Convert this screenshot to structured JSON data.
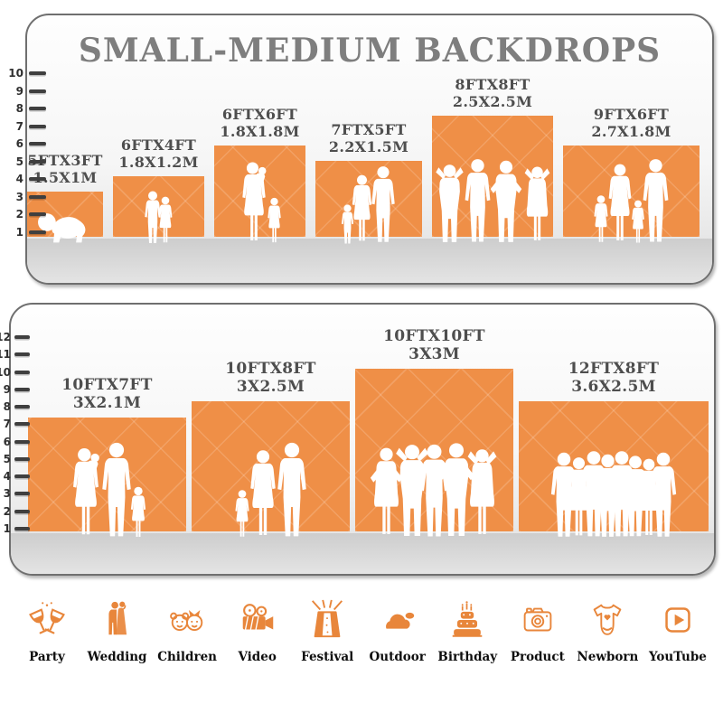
{
  "title": "SMALL-MEDIUM BACKDROPS",
  "colors": {
    "backdrop_orange": "#EF8F47",
    "accent_orange": "#E8863B",
    "title_gray": "#7E7E7E",
    "label_gray": "#4E4E4E",
    "silhouette_white": "#FFFFFF"
  },
  "panels": [
    {
      "name": "small-medium-top",
      "ruler": [
        1,
        2,
        3,
        4,
        5,
        6,
        7,
        8,
        9,
        10
      ],
      "backdrops": [
        {
          "size_ft": "5FTX3FT",
          "size_m": "1.5X1M",
          "w_ft": 5,
          "h_ft": 3,
          "figures": [
            {
              "type": "baby-crawl",
              "scale": 0.45
            }
          ]
        },
        {
          "size_ft": "6FTX4FT",
          "size_m": "1.8X1.2M",
          "w_ft": 6,
          "h_ft": 4,
          "figures": [
            {
              "type": "boy",
              "scale": 0.62
            },
            {
              "type": "girl",
              "scale": 0.56
            }
          ]
        },
        {
          "size_ft": "6FTX6FT",
          "size_m": "1.8X1.8M",
          "w_ft": 6,
          "h_ft": 6,
          "figures": [
            {
              "type": "woman-baby",
              "scale": 0.97
            },
            {
              "type": "girl",
              "scale": 0.55
            }
          ]
        },
        {
          "size_ft": "7FTX5FT",
          "size_m": "2.2X1.5M",
          "w_ft": 7,
          "h_ft": 5,
          "figures": [
            {
              "type": "toddler",
              "scale": 0.47
            },
            {
              "type": "woman",
              "scale": 0.82
            },
            {
              "type": "man",
              "scale": 0.92
            }
          ]
        },
        {
          "size_ft": "8FTX8FT",
          "size_m": "2.5X2.5M",
          "w_ft": 8,
          "h_ft": 8,
          "figures": [
            {
              "type": "man-up",
              "scale": 0.95
            },
            {
              "type": "man",
              "scale": 1.0
            },
            {
              "type": "man-hips",
              "scale": 0.98
            },
            {
              "type": "woman-up",
              "scale": 0.93
            }
          ]
        },
        {
          "size_ft": "9FTX6FT",
          "size_m": "2.7X1.8M",
          "w_ft": 9,
          "h_ft": 6,
          "figures": [
            {
              "type": "girl",
              "scale": 0.58
            },
            {
              "type": "woman",
              "scale": 0.95
            },
            {
              "type": "girl",
              "scale": 0.52
            },
            {
              "type": "man",
              "scale": 1.0
            }
          ]
        }
      ]
    },
    {
      "name": "small-medium-bottom",
      "ruler": [
        1,
        2,
        3,
        4,
        5,
        6,
        7,
        8,
        9,
        10,
        11,
        12
      ],
      "backdrops": [
        {
          "size_ft": "10FTX7FT",
          "size_m": "3X2.1M",
          "w_ft": 10,
          "h_ft": 7,
          "figures": [
            {
              "type": "woman-baby",
              "scale": 0.95
            },
            {
              "type": "man",
              "scale": 1.0
            },
            {
              "type": "girl",
              "scale": 0.55
            }
          ]
        },
        {
          "size_ft": "10FTX8FT",
          "size_m": "3X2.5M",
          "w_ft": 10,
          "h_ft": 8,
          "figures": [
            {
              "type": "girl",
              "scale": 0.52
            },
            {
              "type": "woman",
              "scale": 0.93
            },
            {
              "type": "man",
              "scale": 1.0
            }
          ]
        },
        {
          "size_ft": "10FTX10FT",
          "size_m": "3X3M",
          "w_ft": 10,
          "h_ft": 10,
          "figures": [
            {
              "type": "woman-hips",
              "scale": 0.95
            },
            {
              "type": "man-up",
              "scale": 1.0
            },
            {
              "type": "man",
              "scale": 0.98
            },
            {
              "type": "man-hips",
              "scale": 1.0
            },
            {
              "type": "woman-up",
              "scale": 0.95
            }
          ]
        },
        {
          "size_ft": "12FTX8FT",
          "size_m": "3.6X2.5M",
          "w_ft": 12,
          "h_ft": 8,
          "figures": [
            {
              "type": "man",
              "scale": 0.9
            },
            {
              "type": "woman",
              "scale": 0.85
            },
            {
              "type": "man",
              "scale": 0.92
            },
            {
              "type": "man",
              "scale": 0.88
            },
            {
              "type": "man",
              "scale": 0.92
            },
            {
              "type": "man",
              "scale": 0.87
            },
            {
              "type": "woman",
              "scale": 0.84
            },
            {
              "type": "man",
              "scale": 0.9
            }
          ]
        }
      ]
    }
  ],
  "categories": [
    {
      "label": "Party",
      "icon": "party-icon"
    },
    {
      "label": "Wedding",
      "icon": "wedding-icon"
    },
    {
      "label": "Children",
      "icon": "children-icon"
    },
    {
      "label": "Video",
      "icon": "video-icon"
    },
    {
      "label": "Festival",
      "icon": "festival-icon"
    },
    {
      "label": "Outdoor",
      "icon": "outdoor-icon"
    },
    {
      "label": "Birthday",
      "icon": "birthday-icon"
    },
    {
      "label": "Product",
      "icon": "product-icon"
    },
    {
      "label": "Newborn",
      "icon": "newborn-icon"
    },
    {
      "label": "YouTube",
      "icon": "youtube-icon"
    }
  ]
}
